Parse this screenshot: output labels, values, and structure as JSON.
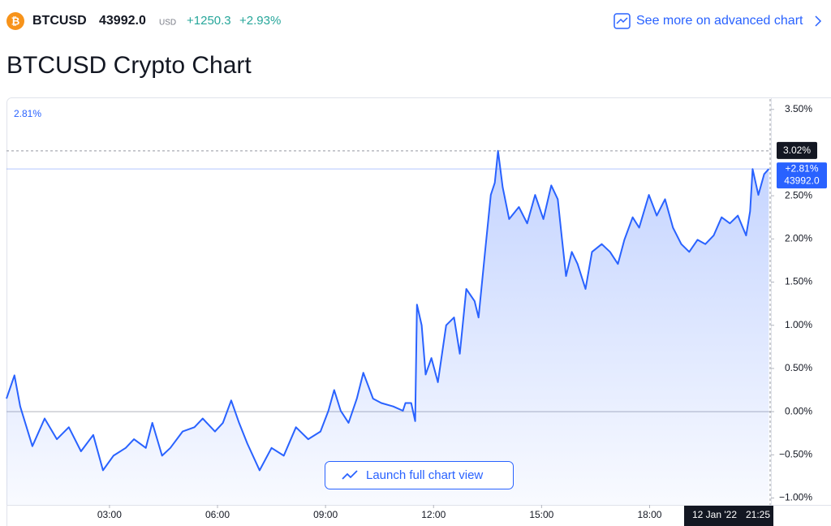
{
  "header": {
    "symbol": "BTCUSD",
    "price": "43992.0",
    "currency": "USD",
    "change": "+1250.3",
    "change_pct": "+2.93%",
    "link": "See more on advanced chart"
  },
  "title": "BTCUSD Crypto Chart",
  "chart_data": {
    "type": "line",
    "color": "#2962ff",
    "corner_label": "2.81%",
    "x": [
      0.14,
      0.36,
      0.52,
      0.86,
      1.2,
      1.54,
      1.87,
      2.21,
      2.55,
      2.82,
      3.11,
      3.45,
      3.68,
      4.01,
      4.19,
      4.46,
      4.69,
      5.03,
      5.36,
      5.59,
      5.93,
      6.15,
      6.38,
      6.6,
      6.83,
      7.17,
      7.5,
      7.84,
      8.18,
      8.52,
      8.86,
      9.08,
      9.24,
      9.42,
      9.64,
      9.87,
      10.05,
      10.32,
      10.55,
      10.88,
      11.15,
      11.22,
      11.38,
      11.49,
      11.54,
      11.67,
      11.78,
      11.94,
      12.12,
      12.35,
      12.57,
      12.73,
      12.91,
      13.14,
      13.25,
      13.43,
      13.59,
      13.7,
      13.79,
      13.92,
      14.1,
      14.37,
      14.6,
      14.82,
      15.05,
      15.27,
      15.45,
      15.57,
      15.68,
      15.84,
      16.0,
      16.22,
      16.4,
      16.67,
      16.9,
      17.12,
      17.3,
      17.53,
      17.71,
      17.98,
      18.2,
      18.43,
      18.65,
      18.88,
      19.1,
      19.33,
      19.55,
      19.78,
      20.0,
      20.23,
      20.45,
      20.68,
      20.79,
      20.86,
      21.02,
      21.18,
      21.31
    ],
    "values": [
      0.15,
      0.42,
      0.06,
      -0.4,
      -0.08,
      -0.32,
      -0.18,
      -0.46,
      -0.27,
      -0.68,
      -0.51,
      -0.42,
      -0.32,
      -0.42,
      -0.13,
      -0.51,
      -0.42,
      -0.23,
      -0.18,
      -0.08,
      -0.23,
      -0.13,
      0.13,
      -0.13,
      -0.37,
      -0.68,
      -0.42,
      -0.51,
      -0.18,
      -0.32,
      -0.23,
      0.01,
      0.25,
      0.01,
      -0.13,
      0.15,
      0.45,
      0.15,
      0.1,
      0.06,
      0.01,
      0.1,
      0.1,
      -0.11,
      1.24,
      1.0,
      0.43,
      0.62,
      0.34,
      1.0,
      1.09,
      0.67,
      1.42,
      1.28,
      1.09,
      1.85,
      2.51,
      2.65,
      3.02,
      2.6,
      2.23,
      2.37,
      2.18,
      2.51,
      2.23,
      2.62,
      2.46,
      1.99,
      1.57,
      1.85,
      1.71,
      1.42,
      1.85,
      1.94,
      1.85,
      1.71,
      1.99,
      2.25,
      2.13,
      2.51,
      2.27,
      2.46,
      2.13,
      1.94,
      1.85,
      1.99,
      1.94,
      2.04,
      2.25,
      2.18,
      2.27,
      2.04,
      2.32,
      2.81,
      2.51,
      2.75,
      2.81
    ],
    "xlim": [
      0.14,
      21.37
    ],
    "ylim": [
      -1.08,
      3.62
    ],
    "xticks": [
      {
        "value": 3,
        "label": "03:00"
      },
      {
        "value": 6,
        "label": "06:00"
      },
      {
        "value": 9,
        "label": "09:00"
      },
      {
        "value": 12,
        "label": "12:00"
      },
      {
        "value": 15,
        "label": "15:00"
      },
      {
        "value": 18,
        "label": "18:00"
      }
    ],
    "yticks": [
      {
        "value": 3.5,
        "label": "3.50%"
      },
      {
        "value": 2.5,
        "label": "2.50%"
      },
      {
        "value": 2,
        "label": "2.00%"
      },
      {
        "value": 1.5,
        "label": "1.50%"
      },
      {
        "value": 1,
        "label": "1.00%"
      },
      {
        "value": 0.5,
        "label": "0.50%"
      },
      {
        "value": 0,
        "label": "0.00%"
      },
      {
        "value": -0.5,
        "label": "−0.50%"
      },
      {
        "value": -1,
        "label": "−1.00%"
      }
    ],
    "baseline": 0,
    "crosshair": {
      "value": 3.02,
      "label": "3.02%"
    },
    "last_value": {
      "value": 2.81,
      "label": "+2.81%",
      "price": "43992.0"
    },
    "date_label": "12 Jan '22",
    "time_label": "21:25",
    "button": "Launch full chart view"
  }
}
